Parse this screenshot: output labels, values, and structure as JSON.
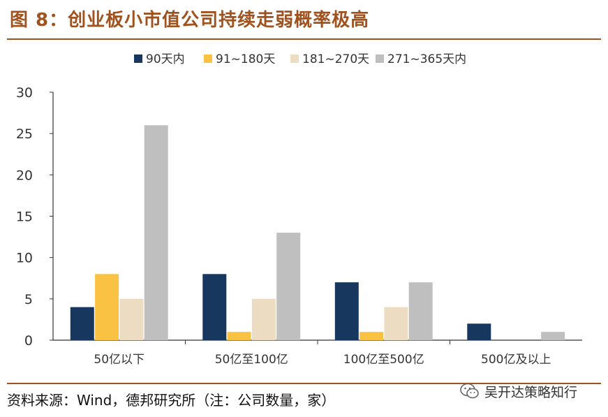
{
  "figure": {
    "title": "图 8：创业板小市值公司持续走弱概率极高",
    "source": "资料来源：Wind，德邦研究所（注：公司数量，家）",
    "watermark": "吴开达策略知行",
    "watermark_icon": "wechat-icon"
  },
  "chart_data": {
    "type": "bar",
    "categories": [
      "50亿以下",
      "50亿至100亿",
      "100亿至500亿",
      "500亿及以上"
    ],
    "series": [
      {
        "name": "90天内",
        "color": "#17375e",
        "values": [
          4,
          8,
          7,
          2
        ]
      },
      {
        "name": "91~180天",
        "color": "#f9c242",
        "values": [
          8,
          1,
          1,
          0
        ]
      },
      {
        "name": "181~270天",
        "color": "#ecdcc1",
        "values": [
          5,
          5,
          4,
          0
        ]
      },
      {
        "name": "271~365天内",
        "color": "#bfbfbf",
        "values": [
          26,
          13,
          7,
          1
        ]
      }
    ],
    "ylim": [
      0,
      30
    ],
    "yticks": [
      0,
      5,
      10,
      15,
      20,
      25,
      30
    ],
    "legend": "top",
    "grid": false
  }
}
